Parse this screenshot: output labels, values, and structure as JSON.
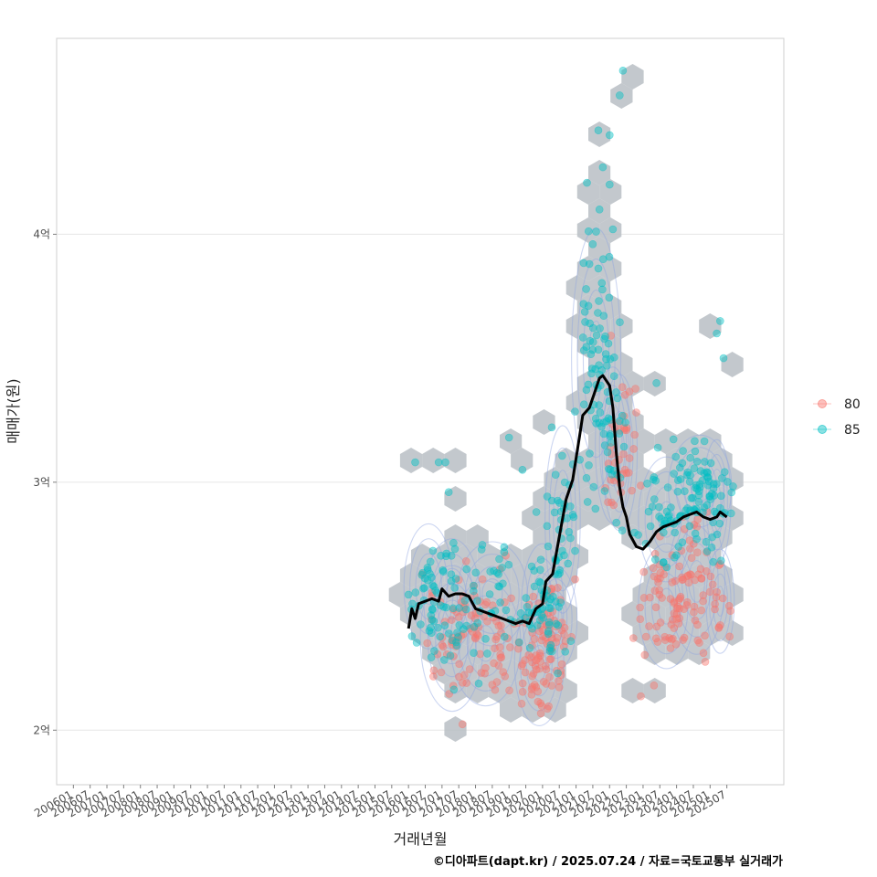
{
  "chart_data": {
    "type": "scatter",
    "xlabel": "거래년월",
    "ylabel": "매매가(원)",
    "caption": "©디아파트(dapt.kr) / 2025.07.24 / 자료=국토교통부 실거래가",
    "x_ticks": [
      "200601",
      "200607",
      "200701",
      "200707",
      "200801",
      "200807",
      "200901",
      "200907",
      "201001",
      "201007",
      "201101",
      "201107",
      "201201",
      "201207",
      "201301",
      "201307",
      "201401",
      "201407",
      "201501",
      "201507",
      "201601",
      "201607",
      "201701",
      "201707",
      "201801",
      "201807",
      "201901",
      "201907",
      "202001",
      "202007",
      "202101",
      "202107",
      "202201",
      "202207",
      "202301",
      "202307",
      "202401",
      "202407",
      "202501",
      "202507"
    ],
    "y_ticks": [
      {
        "value": 2.0,
        "label": "2억"
      },
      {
        "value": 3.0,
        "label": "3억"
      },
      {
        "value": 4.0,
        "label": "4억"
      }
    ],
    "xlim": [
      2005.5,
      2027.2
    ],
    "ylim": [
      1.78,
      4.79
    ],
    "grid": true,
    "legend": {
      "position": "right",
      "entries": [
        {
          "label": "80",
          "color": "#f8766d"
        },
        {
          "label": "85",
          "color": "#00bfc4"
        }
      ]
    },
    "colors": {
      "s80": "#f8766d",
      "s85": "#00bfc4",
      "trend": "#000000",
      "hex": "#b8bec4",
      "contour": "#8fa3e0"
    },
    "trend_line": {
      "name": "이동평균",
      "x": [
        2016.0,
        2016.1,
        2016.2,
        2016.3,
        2016.5,
        2016.7,
        2016.9,
        2017.0,
        2017.2,
        2017.4,
        2017.6,
        2017.8,
        2018.0,
        2018.2,
        2018.4,
        2018.6,
        2018.8,
        2019.0,
        2019.2,
        2019.4,
        2019.6,
        2019.8,
        2020.0,
        2020.1,
        2020.3,
        2020.5,
        2020.7,
        2020.9,
        2021.1,
        2021.2,
        2021.4,
        2021.6,
        2021.7,
        2021.8,
        2021.9,
        2022.0,
        2022.1,
        2022.2,
        2022.3,
        2022.4,
        2022.5,
        2022.6,
        2022.8,
        2023.0,
        2023.2,
        2023.4,
        2023.6,
        2023.8,
        2024.0,
        2024.2,
        2024.4,
        2024.6,
        2024.8,
        2025.0,
        2025.2,
        2025.3,
        2025.5
      ],
      "values": [
        2.41,
        2.49,
        2.45,
        2.51,
        2.52,
        2.53,
        2.52,
        2.57,
        2.54,
        2.55,
        2.55,
        2.54,
        2.49,
        2.48,
        2.47,
        2.46,
        2.45,
        2.44,
        2.43,
        2.44,
        2.43,
        2.49,
        2.51,
        2.6,
        2.63,
        2.78,
        2.93,
        3.01,
        3.18,
        3.27,
        3.3,
        3.38,
        3.42,
        3.43,
        3.41,
        3.39,
        3.3,
        3.12,
        2.98,
        2.9,
        2.86,
        2.79,
        2.74,
        2.73,
        2.76,
        2.8,
        2.82,
        2.83,
        2.84,
        2.86,
        2.87,
        2.88,
        2.86,
        2.85,
        2.86,
        2.88,
        2.86
      ]
    },
    "series": [
      {
        "name": "80",
        "clusters": [
          {
            "x": 2017.3,
            "y": 2.37,
            "sx": 0.45,
            "sy": 0.14,
            "n": 45
          },
          {
            "x": 2018.3,
            "y": 2.35,
            "sx": 0.5,
            "sy": 0.12,
            "n": 55
          },
          {
            "x": 2019.9,
            "y": 2.27,
            "sx": 0.35,
            "sy": 0.12,
            "n": 70
          },
          {
            "x": 2020.4,
            "y": 2.45,
            "sx": 0.3,
            "sy": 0.1,
            "n": 25
          },
          {
            "x": 2022.3,
            "y": 3.12,
            "sx": 0.25,
            "sy": 0.15,
            "n": 40
          },
          {
            "x": 2023.7,
            "y": 2.5,
            "sx": 0.4,
            "sy": 0.12,
            "n": 60
          },
          {
            "x": 2024.6,
            "y": 2.6,
            "sx": 0.4,
            "sy": 0.14,
            "n": 45
          },
          {
            "x": 2025.3,
            "y": 2.52,
            "sx": 0.2,
            "sy": 0.1,
            "n": 15
          }
        ]
      },
      {
        "name": "85",
        "clusters": [
          {
            "x": 2016.6,
            "y": 2.58,
            "sx": 0.35,
            "sy": 0.12,
            "n": 30
          },
          {
            "x": 2017.3,
            "y": 2.52,
            "sx": 0.4,
            "sy": 0.12,
            "n": 40
          },
          {
            "x": 2018.5,
            "y": 2.55,
            "sx": 0.5,
            "sy": 0.1,
            "n": 40
          },
          {
            "x": 2020.0,
            "y": 2.5,
            "sx": 0.3,
            "sy": 0.12,
            "n": 55
          },
          {
            "x": 2020.6,
            "y": 2.85,
            "sx": 0.25,
            "sy": 0.18,
            "n": 35
          },
          {
            "x": 2021.6,
            "y": 3.5,
            "sx": 0.35,
            "sy": 0.25,
            "n": 70
          },
          {
            "x": 2022.1,
            "y": 3.15,
            "sx": 0.25,
            "sy": 0.15,
            "n": 25
          },
          {
            "x": 2023.7,
            "y": 2.85,
            "sx": 0.4,
            "sy": 0.12,
            "n": 45
          },
          {
            "x": 2024.7,
            "y": 2.98,
            "sx": 0.45,
            "sy": 0.1,
            "n": 60
          },
          {
            "x": 2025.2,
            "y": 2.92,
            "sx": 0.2,
            "sy": 0.12,
            "n": 20
          }
        ],
        "outliers": [
          [
            2016.2,
            3.08
          ],
          [
            2016.9,
            3.08
          ],
          [
            2017.1,
            3.08
          ],
          [
            2017.2,
            2.96
          ],
          [
            2019.0,
            3.18
          ],
          [
            2019.4,
            3.05
          ],
          [
            2021.4,
            3.88
          ],
          [
            2021.5,
            3.96
          ],
          [
            2021.7,
            4.1
          ],
          [
            2021.8,
            4.27
          ],
          [
            2022.0,
            4.2
          ],
          [
            2022.1,
            4.02
          ],
          [
            2022.0,
            4.4
          ],
          [
            2022.3,
            4.56
          ],
          [
            2022.4,
            4.66
          ],
          [
            2023.4,
            3.4
          ],
          [
            2025.3,
            3.65
          ],
          [
            2025.2,
            3.6
          ],
          [
            2025.4,
            3.5
          ]
        ]
      }
    ]
  }
}
